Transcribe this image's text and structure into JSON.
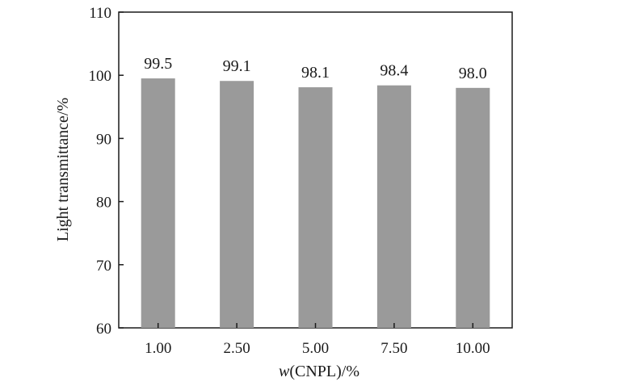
{
  "chart_data": {
    "type": "bar",
    "categories": [
      "1.00",
      "2.50",
      "5.00",
      "7.50",
      "10.00"
    ],
    "values": [
      99.5,
      99.1,
      98.1,
      98.4,
      98.0
    ],
    "data_labels": [
      "99.5",
      "99.1",
      "98.1",
      "98.4",
      "98.0"
    ],
    "title": "",
    "xlabel_italic": "w",
    "xlabel_rest": "(CNPL)/%",
    "ylabel": "Light transmittance/%",
    "ylim": [
      60,
      110
    ],
    "yticks": [
      "60",
      "70",
      "80",
      "90",
      "100",
      "110"
    ],
    "grid": false,
    "legend": "none",
    "bar_color": "#9a9a9a"
  }
}
